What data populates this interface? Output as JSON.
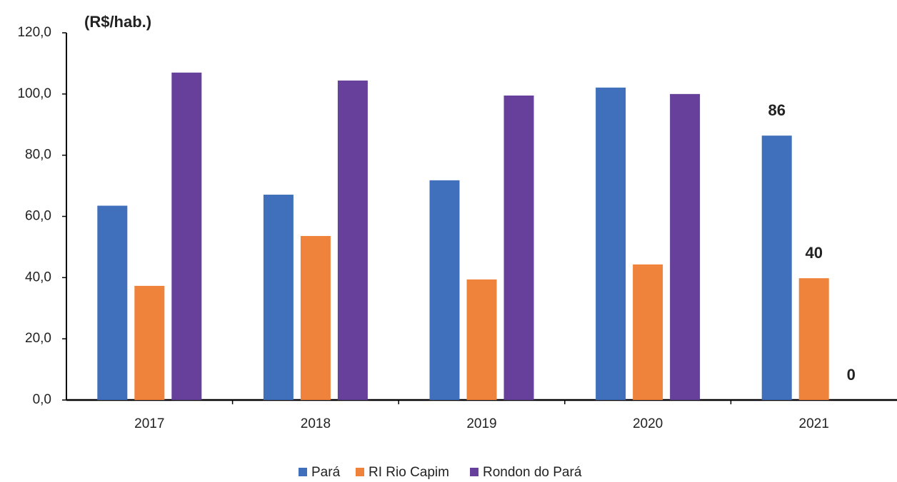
{
  "chart_data": {
    "type": "bar",
    "y_label": "(R$/hab.)",
    "categories": [
      "2017",
      "2018",
      "2019",
      "2020",
      "2021"
    ],
    "series": [
      {
        "name": "Pará",
        "color": "#4070bb",
        "values": [
          63.5,
          67.1,
          71.8,
          102.1,
          86.4
        ],
        "value_labels": [
          null,
          null,
          null,
          null,
          "86"
        ]
      },
      {
        "name": "RI Rio Capim",
        "color": "#f0833c",
        "values": [
          37.3,
          53.6,
          39.4,
          44.3,
          39.8
        ],
        "value_labels": [
          null,
          null,
          null,
          null,
          "40"
        ]
      },
      {
        "name": "Rondon do Pará",
        "color": "#66409a",
        "values": [
          107.0,
          104.4,
          99.5,
          100.0,
          0
        ],
        "value_labels": [
          null,
          null,
          null,
          null,
          "0"
        ]
      }
    ],
    "ylim": [
      0,
      120
    ],
    "yticks": [
      {
        "value": 0,
        "label": "0,0"
      },
      {
        "value": 20,
        "label": "20,0"
      },
      {
        "value": 40,
        "label": "40,0"
      },
      {
        "value": 60,
        "label": "60,0"
      },
      {
        "value": 80,
        "label": "80,0"
      },
      {
        "value": 100,
        "label": "100,0"
      },
      {
        "value": 120,
        "label": "120,0"
      }
    ],
    "legend": "bottom",
    "grid": false
  }
}
